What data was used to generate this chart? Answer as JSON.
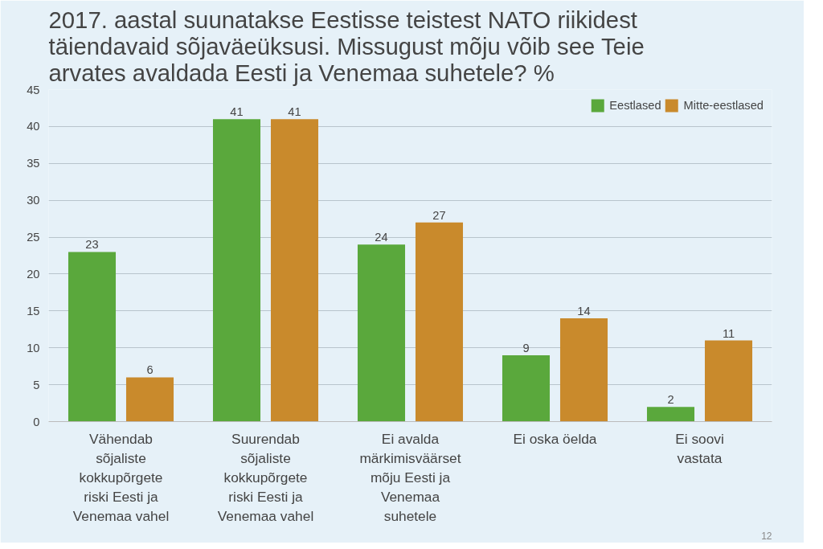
{
  "chart_data": {
    "type": "bar",
    "title": "2017. aastal suunatakse Eestisse teistest NATO riikidest täiendavaid sõjaväeüksusi. Missugust mõju võib see Teie arvates avaldada Eesti ja Venemaa suhetele? %",
    "categories": [
      "Vähendab sõjaliste kokkupõrgete riski Eesti ja Venemaa vahel",
      "Suurendab sõjaliste kokkupõrgete riski Eesti ja Venemaa vahel",
      "Ei avalda märkimisväärset mõju Eesti ja Venemaa suhetele",
      "Ei oska öelda",
      "Ei soovi vastata"
    ],
    "series": [
      {
        "name": "Eestlased",
        "color": "#5aa83c",
        "values": [
          23,
          41,
          24,
          9,
          2
        ]
      },
      {
        "name": "Mitte-eestlased",
        "color": "#c98a2c",
        "values": [
          6,
          41,
          27,
          14,
          11
        ]
      }
    ],
    "ylim": [
      0,
      45
    ],
    "yticks": [
      0,
      5,
      10,
      15,
      20,
      25,
      30,
      35,
      40,
      45
    ],
    "grid": "y",
    "legend": "top right",
    "data_labels": true,
    "annotations": [
      "12"
    ]
  }
}
